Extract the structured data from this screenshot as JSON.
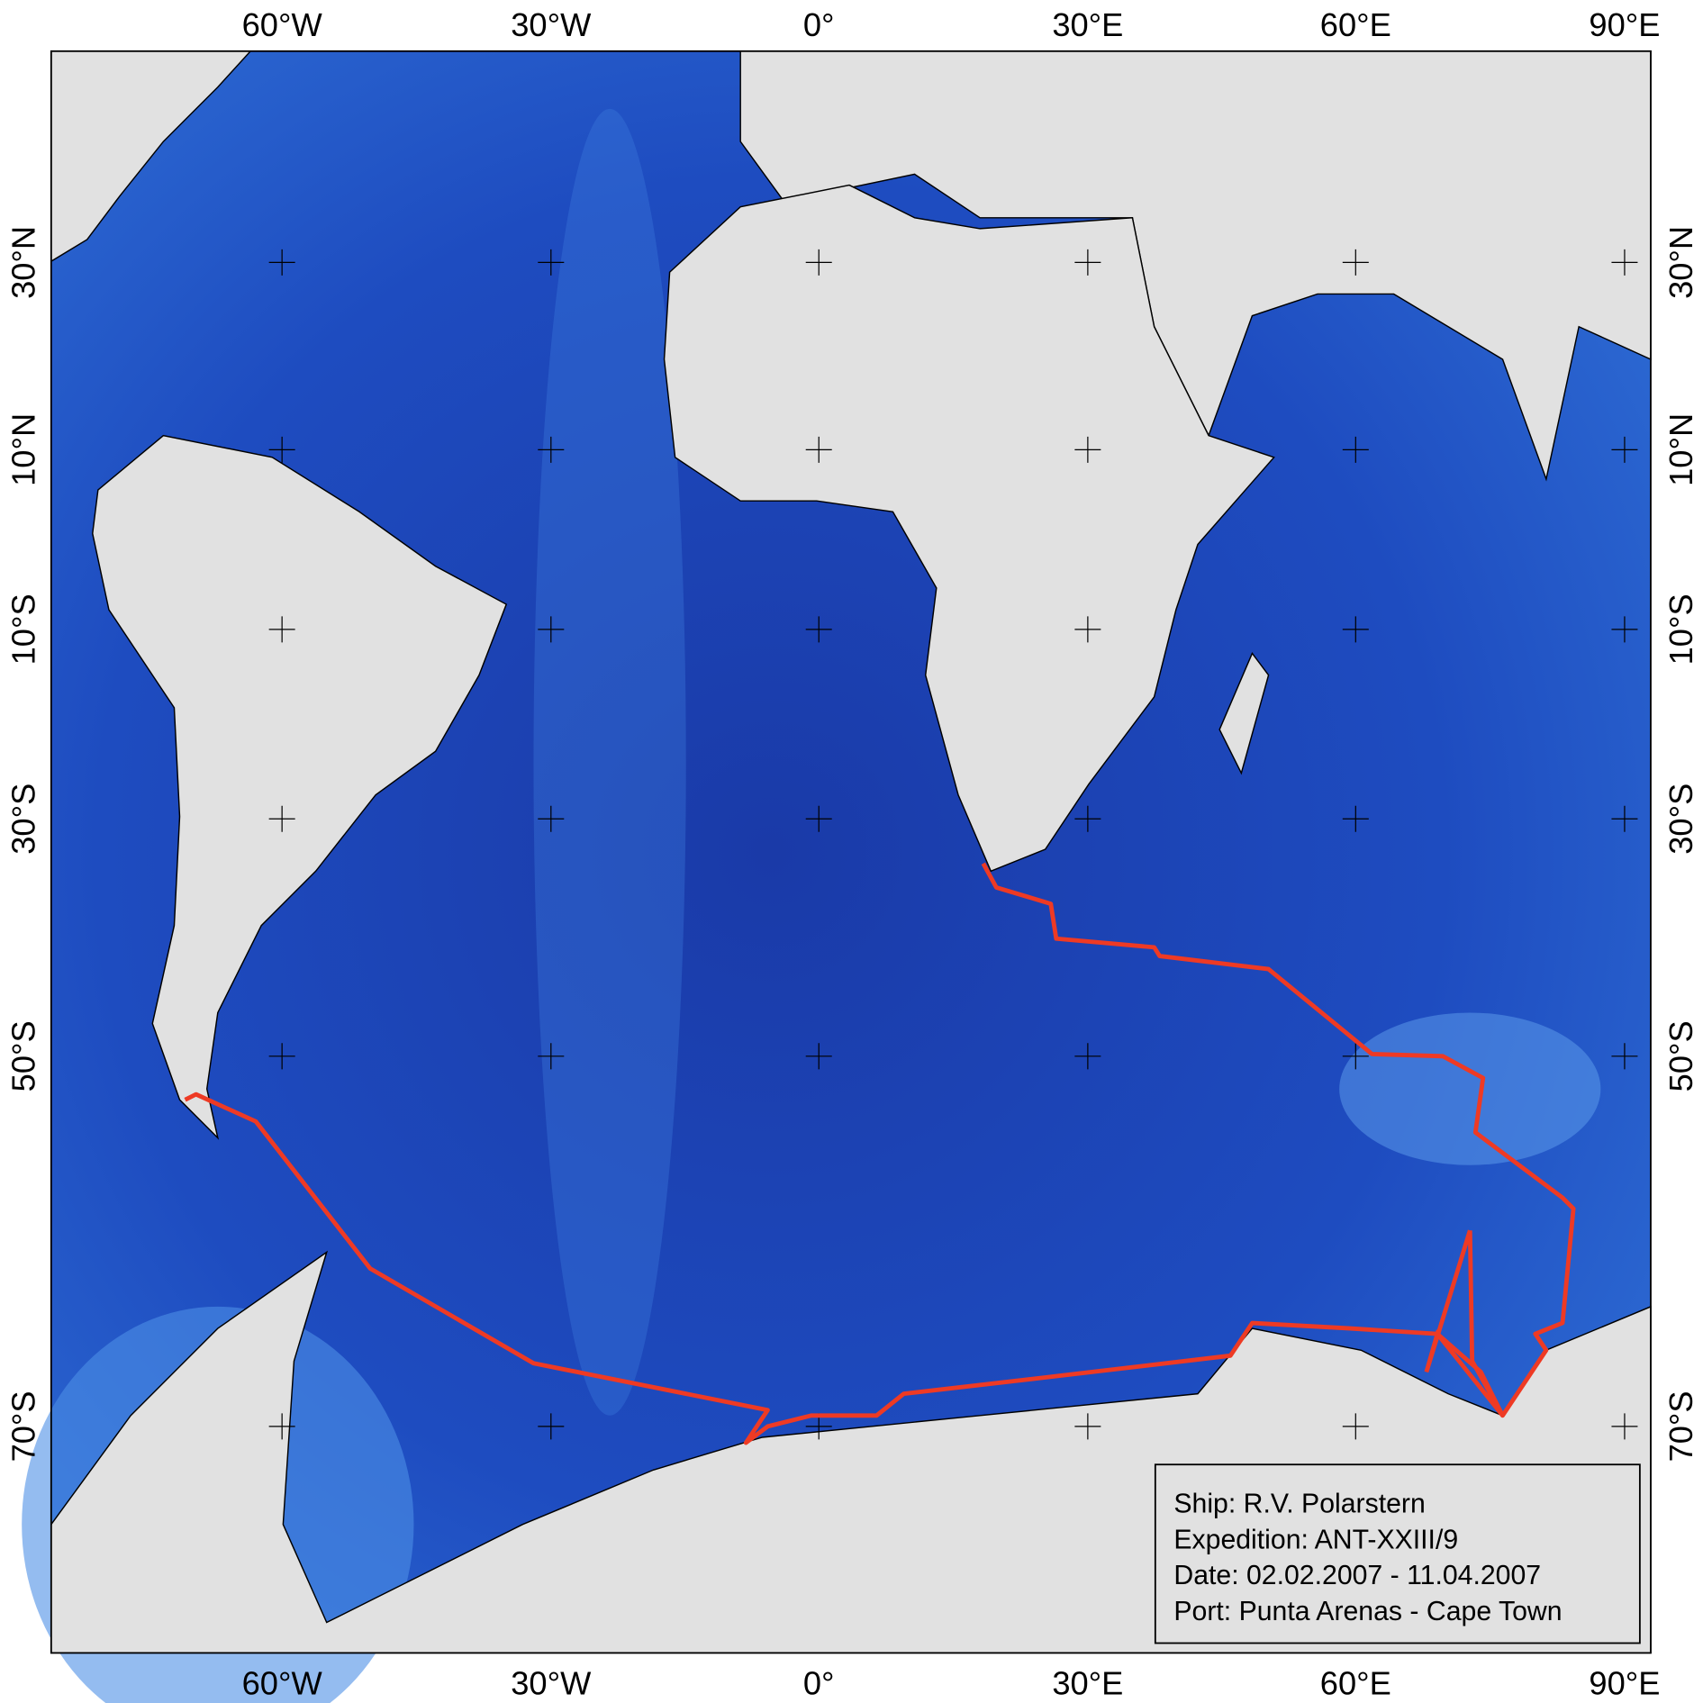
{
  "map": {
    "longitude_labels": [
      "60°W",
      "30°W",
      "0°",
      "30°E",
      "60°E",
      "90°E"
    ],
    "latitude_labels": [
      "30°N",
      "10°N",
      "10°S",
      "30°S",
      "50°S",
      "70°S"
    ],
    "legend": [
      "Ship: R.V. Polarstern",
      "Expedition: ANT-XXIII/9",
      "Date: 02.02.2007 - 11.04.2007",
      "Port: Punta Arenas - Cape Town"
    ]
  }
}
